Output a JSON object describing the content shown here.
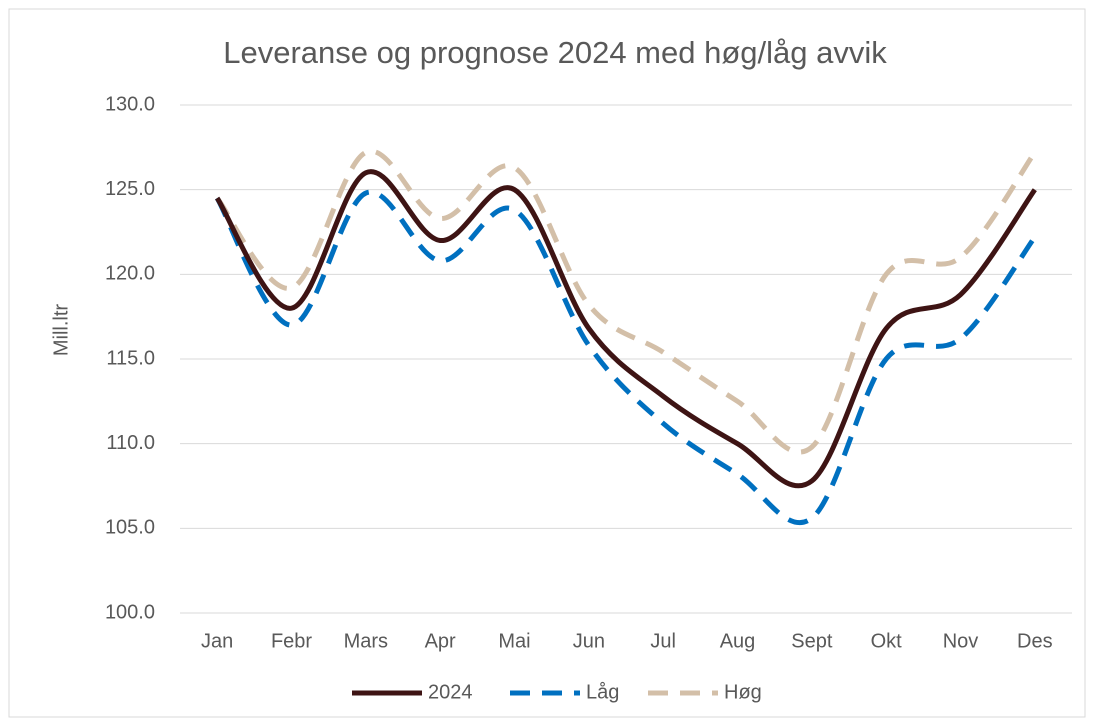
{
  "chart_data": {
    "type": "line",
    "title": "Leveranse og prognose 2024 med høg/låg avvik",
    "y_label": "Mill.ltr",
    "categories": [
      "Jan",
      "Febr",
      "Mars",
      "Apr",
      "Mai",
      "Jun",
      "Jul",
      "Aug",
      "Sept",
      "Okt",
      "Nov",
      "Des"
    ],
    "series": [
      {
        "name": "2024",
        "color": "#3e1414",
        "dash": false,
        "values": [
          124.5,
          118,
          126,
          122,
          125,
          116.8,
          112.8,
          110,
          107.8,
          116.8,
          118.8,
          125
        ]
      },
      {
        "name": "Låg",
        "color": "#0070c0",
        "dash": true,
        "values": [
          124.5,
          117,
          124.8,
          120.8,
          123.8,
          115.8,
          111.2,
          108.2,
          105.6,
          115,
          116.2,
          122.2
        ]
      },
      {
        "name": "Høg",
        "color": "#d3bfa8",
        "dash": true,
        "values": [
          124.5,
          119.2,
          127.2,
          123.3,
          126.3,
          118.2,
          115.4,
          112.5,
          109.8,
          120,
          121,
          127.2
        ]
      }
    ],
    "ylim": [
      100,
      130
    ],
    "yticks": [
      {
        "value": 100,
        "label": "100.0"
      },
      {
        "value": 105,
        "label": "105.0"
      },
      {
        "value": 110,
        "label": "110.0"
      },
      {
        "value": 115,
        "label": "115.0"
      },
      {
        "value": 120,
        "label": "120.0"
      },
      {
        "value": 125,
        "label": "125.0"
      },
      {
        "value": 130,
        "label": "130.0"
      }
    ],
    "grid": true,
    "smooth": true,
    "legend": "bottom"
  }
}
